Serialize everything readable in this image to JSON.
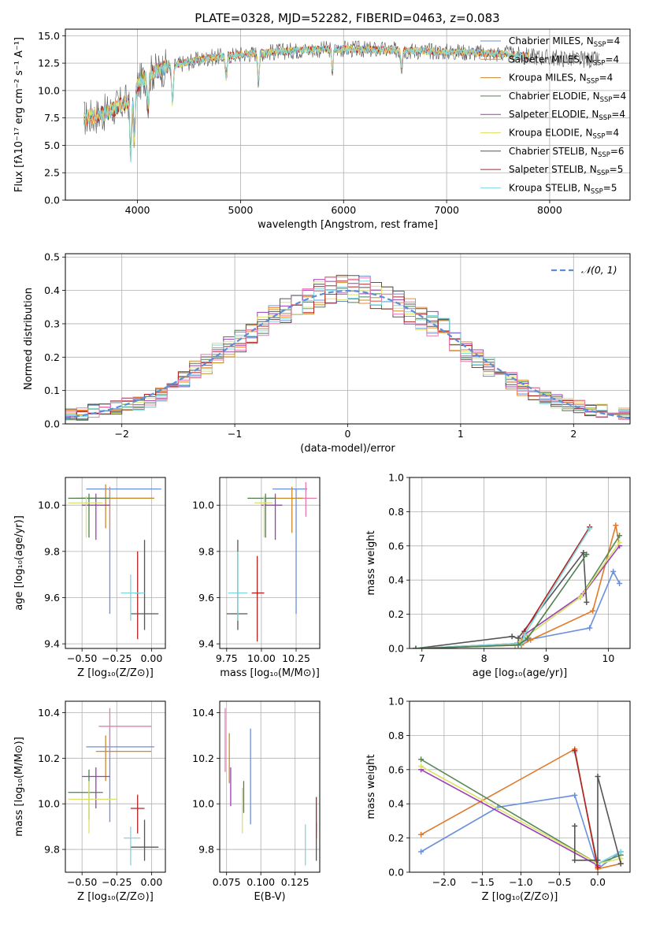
{
  "figure_title": "PLATE=0328, MJD=52282, FIBERID=0463, z=0.083",
  "colors": {
    "Chabrier MILES": "#6a8fdc",
    "Salpeter MILES": "#f28a2f",
    "Kroupa MILES": "#c98a2a",
    "Chabrier ELODIE": "#4f7f4f",
    "Salpeter ELODIE": "#9b3fb5",
    "Kroupa ELODIE": "#dde36a",
    "Chabrier STELIB": "#555555",
    "Salpeter STELIB": "#b22222",
    "Kroupa STELIB": "#7fd6dc",
    "pink": "#e879b0",
    "orange_line": "#e07a2a",
    "green_line": "#5a8a5a",
    "normal_curve": "#5a8fd6"
  },
  "chart_data": [
    {
      "id": "spectrum",
      "type": "line",
      "title": "PLATE=0328, MJD=52282, FIBERID=0463, z=0.083",
      "xlabel": "wavelength [Angstrom, rest frame]",
      "ylabel": "Flux [fλ10⁻¹⁷ erg cm⁻² s⁻¹ A⁻¹]",
      "xlim": [
        3300,
        8780
      ],
      "ylim": [
        0,
        15.6
      ],
      "xticks": [
        "4000",
        "5000",
        "6000",
        "7000",
        "8000"
      ],
      "yticks": [
        "0.0",
        "2.5",
        "5.0",
        "7.5",
        "10.0",
        "12.5",
        "15.0"
      ],
      "legend_position": "right",
      "series": [
        {
          "name": "Chabrier MILES, N",
          "sub": "SSP",
          "suffix": "=4"
        },
        {
          "name": "Salpeter MILES, N",
          "sub": "SSP",
          "suffix": "=4"
        },
        {
          "name": "Kroupa MILES, N",
          "sub": "SSP",
          "suffix": "=4"
        },
        {
          "name": "Chabrier ELODIE, N",
          "sub": "SSP",
          "suffix": "=4"
        },
        {
          "name": "Salpeter ELODIE, N",
          "sub": "SSP",
          "suffix": "=4"
        },
        {
          "name": "Kroupa ELODIE, N",
          "sub": "SSP",
          "suffix": "=4"
        },
        {
          "name": "Chabrier STELIB, N",
          "sub": "SSP",
          "suffix": "=6"
        },
        {
          "name": "Salpeter STELIB, N",
          "sub": "SSP",
          "suffix": "=5"
        },
        {
          "name": "Kroupa STELIB, N",
          "sub": "SSP",
          "suffix": "=5"
        }
      ],
      "continuum": {
        "x": [
          3500,
          3700,
          3900,
          4000,
          4100,
          4300,
          4500,
          4700,
          5000,
          5300,
          5600,
          6000,
          6400,
          6800,
          7200,
          7600,
          8000,
          8400
        ],
        "y": [
          7.5,
          8.0,
          9.0,
          10.5,
          11.5,
          12.2,
          12.6,
          13.0,
          13.3,
          13.5,
          13.7,
          13.8,
          13.7,
          13.6,
          13.5,
          13.3,
          13.0,
          12.8
        ]
      },
      "absorption_lines": [
        {
          "x": 3934,
          "depth": 5.5
        },
        {
          "x": 3969,
          "depth": 4.5
        },
        {
          "x": 4102,
          "depth": 3.0
        },
        {
          "x": 4340,
          "depth": 3.5
        },
        {
          "x": 4861,
          "depth": 2.0
        },
        {
          "x": 5175,
          "depth": 2.5
        },
        {
          "x": 5892,
          "depth": 2.0
        },
        {
          "x": 6563,
          "depth": 1.5
        }
      ]
    },
    {
      "id": "residuals",
      "type": "bar",
      "xlabel": "(data-model)/error",
      "ylabel": "Normed distribution",
      "xlim": [
        -2.5,
        2.5
      ],
      "ylim": [
        0,
        0.51
      ],
      "xticks": [
        "−2",
        "−1",
        "0",
        "1",
        "2"
      ],
      "yticks": [
        "0.0",
        "0.1",
        "0.2",
        "0.3",
        "0.4",
        "0.5"
      ],
      "legend": "𝒩(0, 1)",
      "legend_position": "top-right",
      "bin_width": 0.1,
      "bin_start": -2.5,
      "base": [
        0.03,
        0.03,
        0.04,
        0.04,
        0.05,
        0.06,
        0.06,
        0.07,
        0.09,
        0.11,
        0.13,
        0.16,
        0.18,
        0.21,
        0.23,
        0.25,
        0.27,
        0.3,
        0.32,
        0.34,
        0.36,
        0.37,
        0.39,
        0.4,
        0.4,
        0.4,
        0.4,
        0.39,
        0.38,
        0.36,
        0.34,
        0.32,
        0.3,
        0.28,
        0.25,
        0.22,
        0.2,
        0.17,
        0.15,
        0.13,
        0.11,
        0.09,
        0.08,
        0.07,
        0.06,
        0.05,
        0.04,
        0.04,
        0.03,
        0.03
      ]
    },
    {
      "id": "age_vs_Z",
      "type": "scatter",
      "xlabel": "Z [log₁₀(Z/Z⊙)]",
      "ylabel": "age  [log₁₀(age/yr)]",
      "xlim": [
        -0.62,
        0.1
      ],
      "ylim": [
        9.38,
        10.12
      ],
      "xticks": [
        "−0.50",
        "−0.25",
        "0.00"
      ],
      "yticks": [
        "9.4",
        "9.6",
        "9.8",
        "10.0"
      ],
      "points": [
        {
          "s": "Chabrier MILES",
          "x": -0.3,
          "y": 10.07,
          "xl": -0.47,
          "xh": 0.07,
          "yl": 9.53,
          "yh": 10.07
        },
        {
          "s": "Salpeter MILES",
          "x": -0.3,
          "y": 10.03,
          "xl": -0.55,
          "xh": 0.02,
          "yl": 9.9,
          "yh": 10.08
        },
        {
          "s": "Kroupa MILES",
          "x": -0.33,
          "y": 10.03,
          "xl": -0.5,
          "xh": 0.02,
          "yl": 9.9,
          "yh": 10.09
        },
        {
          "s": "Chabrier ELODIE",
          "x": -0.45,
          "y": 10.03,
          "xl": -0.6,
          "xh": -0.3,
          "yl": 9.86,
          "yh": 10.05
        },
        {
          "s": "Salpeter ELODIE",
          "x": -0.4,
          "y": 10.0,
          "xl": -0.5,
          "xh": -0.3,
          "yl": 9.85,
          "yh": 10.05
        },
        {
          "s": "Kroupa ELODIE",
          "x": -0.47,
          "y": 10.01,
          "xl": -0.6,
          "xh": -0.35,
          "yl": 9.86,
          "yh": 10.04
        },
        {
          "s": "Chabrier STELIB",
          "x": -0.05,
          "y": 9.53,
          "xl": -0.15,
          "xh": 0.05,
          "yl": 9.46,
          "yh": 9.85
        },
        {
          "s": "Salpeter STELIB",
          "x": -0.1,
          "y": 9.62,
          "xl": -0.12,
          "xh": -0.08,
          "yl": 9.42,
          "yh": 9.8
        },
        {
          "s": "Kroupa STELIB",
          "x": -0.15,
          "y": 9.62,
          "xl": -0.22,
          "xh": -0.05,
          "yl": 9.5,
          "yh": 9.7
        }
      ]
    },
    {
      "id": "age_vs_mass",
      "type": "scatter",
      "xlabel": "mass [log₁₀(M/M⊙)]",
      "ylabel": "",
      "xlim": [
        9.7,
        10.42
      ],
      "ylim": [
        9.38,
        10.12
      ],
      "xticks": [
        "9.75",
        "10.00",
        "10.25"
      ],
      "yticks": [
        "9.4",
        "9.6",
        "9.8",
        "10.0"
      ],
      "points": [
        {
          "s": "Chabrier MILES",
          "x": 10.25,
          "y": 10.07,
          "xl": 10.08,
          "xh": 10.33,
          "yl": 9.53,
          "yh": 10.07
        },
        {
          "s": "pink",
          "x": 10.32,
          "y": 10.03,
          "xl": 10.25,
          "xh": 10.4,
          "yl": 9.95,
          "yh": 10.1
        },
        {
          "s": "Kroupa MILES",
          "x": 10.22,
          "y": 10.03,
          "xl": 10.05,
          "xh": 10.3,
          "yl": 9.88,
          "yh": 10.08
        },
        {
          "s": "Chabrier ELODIE",
          "x": 10.03,
          "y": 10.03,
          "xl": 9.9,
          "xh": 10.1,
          "yl": 9.86,
          "yh": 10.05
        },
        {
          "s": "Salpeter ELODIE",
          "x": 10.1,
          "y": 10.0,
          "xl": 10.0,
          "xh": 10.15,
          "yl": 9.85,
          "yh": 10.05
        },
        {
          "s": "Kroupa ELODIE",
          "x": 10.02,
          "y": 10.01,
          "xl": 9.95,
          "xh": 10.08,
          "yl": 9.86,
          "yh": 10.04
        },
        {
          "s": "Chabrier STELIB",
          "x": 9.83,
          "y": 9.53,
          "xl": 9.75,
          "xh": 9.9,
          "yl": 9.46,
          "yh": 9.85
        },
        {
          "s": "Salpeter STELIB",
          "x": 9.97,
          "y": 9.62,
          "xl": 9.93,
          "xh": 10.02,
          "yl": 9.41,
          "yh": 9.78
        },
        {
          "s": "Kroupa STELIB",
          "x": 9.83,
          "y": 9.62,
          "xl": 9.76,
          "xh": 9.9,
          "yl": 9.5,
          "yh": 9.8
        }
      ]
    },
    {
      "id": "mass_weight_vs_age",
      "type": "line",
      "xlabel": "age  [log₁₀(age/yr)]",
      "ylabel": "mass weight",
      "xlim": [
        6.8,
        10.35
      ],
      "ylim": [
        0,
        1.0
      ],
      "xticks": [
        "7",
        "8",
        "9",
        "10"
      ],
      "yticks": [
        "0.0",
        "0.2",
        "0.4",
        "0.6",
        "0.8",
        "1.0"
      ],
      "series": [
        {
          "s": "Chabrier MILES",
          "x": [
            6.9,
            8.5,
            8.7,
            9.7,
            10.08,
            10.18
          ],
          "y": [
            0,
            0.02,
            0.05,
            0.12,
            0.45,
            0.38
          ]
        },
        {
          "s": "orange_line",
          "x": [
            6.9,
            8.6,
            8.75,
            9.75,
            10.12,
            10.18
          ],
          "y": [
            0,
            0.02,
            0.05,
            0.22,
            0.72,
            0.6
          ]
        },
        {
          "s": "green_line",
          "x": [
            6.9,
            8.5,
            8.6,
            9.55,
            10.18
          ],
          "y": [
            0,
            0.02,
            0.05,
            0.3,
            0.66
          ]
        },
        {
          "s": "Salpeter ELODIE",
          "x": [
            6.9,
            8.5,
            8.65,
            9.6,
            10.18
          ],
          "y": [
            0,
            0.02,
            0.08,
            0.32,
            0.6
          ]
        },
        {
          "s": "Kroupa ELODIE",
          "x": [
            6.9,
            8.5,
            8.6,
            9.55,
            10.18
          ],
          "y": [
            0,
            0.02,
            0.05,
            0.3,
            0.62
          ]
        },
        {
          "s": "Chabrier STELIB",
          "x": [
            6.9,
            8.45,
            8.55,
            9.6,
            9.65
          ],
          "y": [
            0,
            0.07,
            0.06,
            0.56,
            0.27
          ]
        },
        {
          "s": "Salpeter STELIB",
          "x": [
            6.9,
            8.6,
            8.65,
            9.7
          ],
          "y": [
            0,
            0.03,
            0.1,
            0.71
          ]
        },
        {
          "s": "Kroupa STELIB",
          "x": [
            6.9,
            8.6,
            8.65,
            9.7
          ],
          "y": [
            0,
            0.03,
            0.08,
            0.7
          ]
        },
        {
          "s": "Chabrier ELODIE",
          "x": [
            6.9,
            8.55,
            8.7,
            9.65
          ],
          "y": [
            0,
            0.02,
            0.06,
            0.55
          ]
        }
      ]
    },
    {
      "id": "mass_vs_Z",
      "type": "scatter",
      "xlabel": "Z [log₁₀(Z/Z⊙)]",
      "ylabel": "mass [log₁₀(M/M⊙)]",
      "xlim": [
        -0.62,
        0.1
      ],
      "ylim": [
        9.7,
        10.45
      ],
      "xticks": [
        "−0.50",
        "−0.25",
        "0.00"
      ],
      "yticks": [
        "9.8",
        "10.0",
        "10.2",
        "10.4"
      ],
      "points": [
        {
          "s": "Chabrier MILES",
          "x": -0.3,
          "y": 10.25,
          "xl": -0.47,
          "xh": 0.02,
          "yl": 9.92,
          "yh": 10.33
        },
        {
          "s": "pink",
          "x": -0.3,
          "y": 10.34,
          "xl": -0.38,
          "xh": 0.0,
          "yl": 10.2,
          "yh": 10.42
        },
        {
          "s": "Kroupa MILES",
          "x": -0.33,
          "y": 10.23,
          "xl": -0.4,
          "xh": 0.0,
          "yl": 10.1,
          "yh": 10.3
        },
        {
          "s": "Chabrier ELODIE",
          "x": -0.45,
          "y": 10.05,
          "xl": -0.6,
          "xh": -0.35,
          "yl": 9.93,
          "yh": 10.15
        },
        {
          "s": "Salpeter ELODIE",
          "x": -0.4,
          "y": 10.12,
          "xl": -0.5,
          "xh": -0.3,
          "yl": 9.98,
          "yh": 10.16
        },
        {
          "s": "Kroupa ELODIE",
          "x": -0.45,
          "y": 10.02,
          "xl": -0.6,
          "xh": -0.25,
          "yl": 9.87,
          "yh": 10.1
        },
        {
          "s": "Chabrier STELIB",
          "x": -0.05,
          "y": 9.81,
          "xl": -0.15,
          "xh": 0.05,
          "yl": 9.75,
          "yh": 9.93
        },
        {
          "s": "Salpeter STELIB",
          "x": -0.1,
          "y": 9.98,
          "xl": -0.15,
          "xh": -0.05,
          "yl": 9.87,
          "yh": 10.04
        },
        {
          "s": "Kroupa STELIB",
          "x": -0.15,
          "y": 9.85,
          "xl": -0.2,
          "xh": -0.08,
          "yl": 9.73,
          "yh": 9.9
        }
      ]
    },
    {
      "id": "mass_vs_ebv",
      "type": "scatter",
      "xlabel": "E(B-V)",
      "ylabel": "",
      "xlim": [
        0.07,
        0.143
      ],
      "ylim": [
        9.7,
        10.45
      ],
      "xticks": [
        "0.075",
        "0.100",
        "0.125"
      ],
      "yticks": [
        "9.8",
        "10.0",
        "10.2",
        "10.4"
      ],
      "points": [
        {
          "s": "Chabrier MILES",
          "x": 0.0925,
          "yl": 9.91,
          "yh": 10.33
        },
        {
          "s": "pink",
          "x": 0.074,
          "yl": 10.14,
          "yh": 10.42
        },
        {
          "s": "Kroupa MILES",
          "x": 0.077,
          "yl": 10.09,
          "yh": 10.31
        },
        {
          "s": "Chabrier ELODIE",
          "x": 0.0875,
          "yl": 9.96,
          "yh": 10.1
        },
        {
          "s": "Salpeter ELODIE",
          "x": 0.078,
          "yl": 9.99,
          "yh": 10.16
        },
        {
          "s": "Kroupa ELODIE",
          "x": 0.0865,
          "yl": 9.87,
          "yh": 10.07
        },
        {
          "s": "Chabrier STELIB",
          "x": 0.1405,
          "yl": 9.75,
          "yh": 9.92
        },
        {
          "s": "Salpeter STELIB",
          "x": 0.1405,
          "yl": 9.85,
          "yh": 10.03
        },
        {
          "s": "Kroupa STELIB",
          "x": 0.1325,
          "yl": 9.73,
          "yh": 9.91
        }
      ]
    },
    {
      "id": "mass_weight_vs_Z",
      "type": "line",
      "xlabel": "Z [log₁₀(Z/Z⊙)]",
      "ylabel": "mass weight",
      "xlim": [
        -2.45,
        0.42
      ],
      "ylim": [
        0,
        1.0
      ],
      "xticks": [
        "−2.0",
        "−1.5",
        "−1.0",
        "−0.5",
        "0.0"
      ],
      "yticks": [
        "0.0",
        "0.2",
        "0.4",
        "0.6",
        "0.8",
        "1.0"
      ],
      "series": [
        {
          "s": "Chabrier MILES",
          "x": [
            -2.3,
            -1.3,
            -0.3,
            0.0,
            0.3
          ],
          "y": [
            0.12,
            0.38,
            0.45,
            0.02,
            0.12
          ]
        },
        {
          "s": "orange_line",
          "x": [
            -2.3,
            -0.3,
            0.0,
            0.3
          ],
          "y": [
            0.22,
            0.72,
            0.02,
            0.05
          ]
        },
        {
          "s": "green_line",
          "x": [
            -2.3,
            0.0,
            0.3
          ],
          "y": [
            0.66,
            0.05,
            0.1
          ]
        },
        {
          "s": "Salpeter ELODIE",
          "x": [
            -2.3,
            0.0
          ],
          "y": [
            0.6,
            0.04
          ]
        },
        {
          "s": "Kroupa ELODIE",
          "x": [
            -2.3,
            0.0,
            0.3
          ],
          "y": [
            0.62,
            0.05,
            0.08
          ]
        },
        {
          "s": "Kroupa STELIB",
          "x": [
            -0.3,
            0.0,
            0.3
          ],
          "y": [
            0.7,
            0.05,
            0.12
          ]
        },
        {
          "s": "Chabrier STELIB",
          "x": [
            -0.3,
            -0.3,
            0.0,
            0.0,
            0.3
          ],
          "y": [
            0.27,
            0.07,
            0.07,
            0.56,
            0.05
          ]
        },
        {
          "s": "Salpeter STELIB",
          "x": [
            -0.3,
            0.0
          ],
          "y": [
            0.71,
            0.03
          ]
        }
      ]
    }
  ]
}
